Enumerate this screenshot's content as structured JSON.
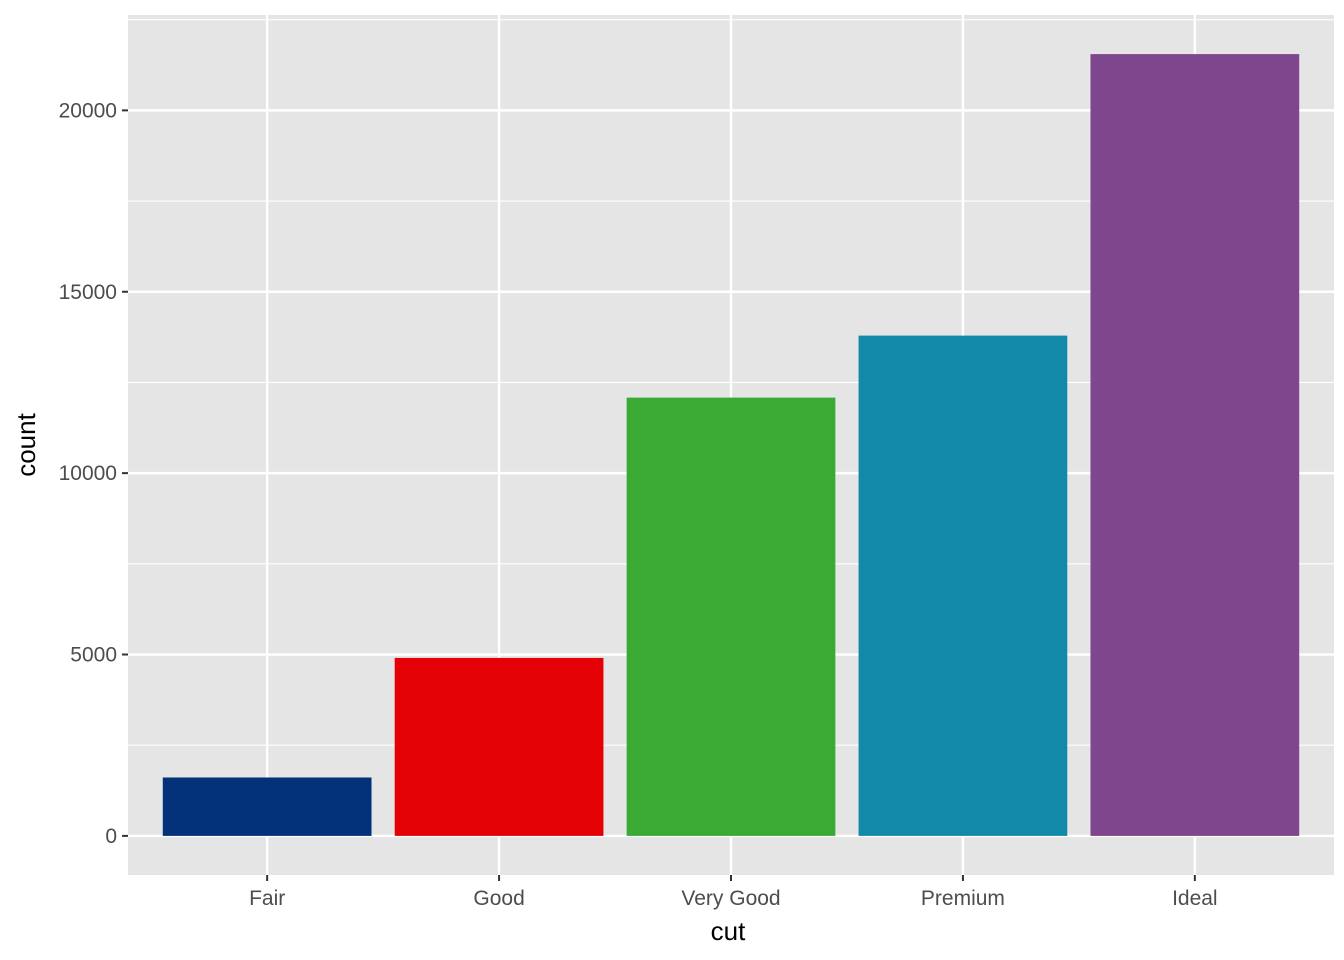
{
  "chart_data": {
    "type": "bar",
    "categories": [
      "Fair",
      "Good",
      "Very Good",
      "Premium",
      "Ideal"
    ],
    "values": [
      1610,
      4906,
      12082,
      13791,
      21551
    ],
    "colors": [
      "#03317A",
      "#E30106",
      "#3AAA35",
      "#1389A9",
      "#7E468D"
    ],
    "xlabel": "cut",
    "ylabel": "count",
    "ylim": [
      -1078,
      22629
    ],
    "y_ticks": [
      0,
      5000,
      10000,
      15000,
      20000
    ],
    "grid": true,
    "panel_background": "#E5E5E5",
    "grid_color": "#FFFFFF"
  }
}
